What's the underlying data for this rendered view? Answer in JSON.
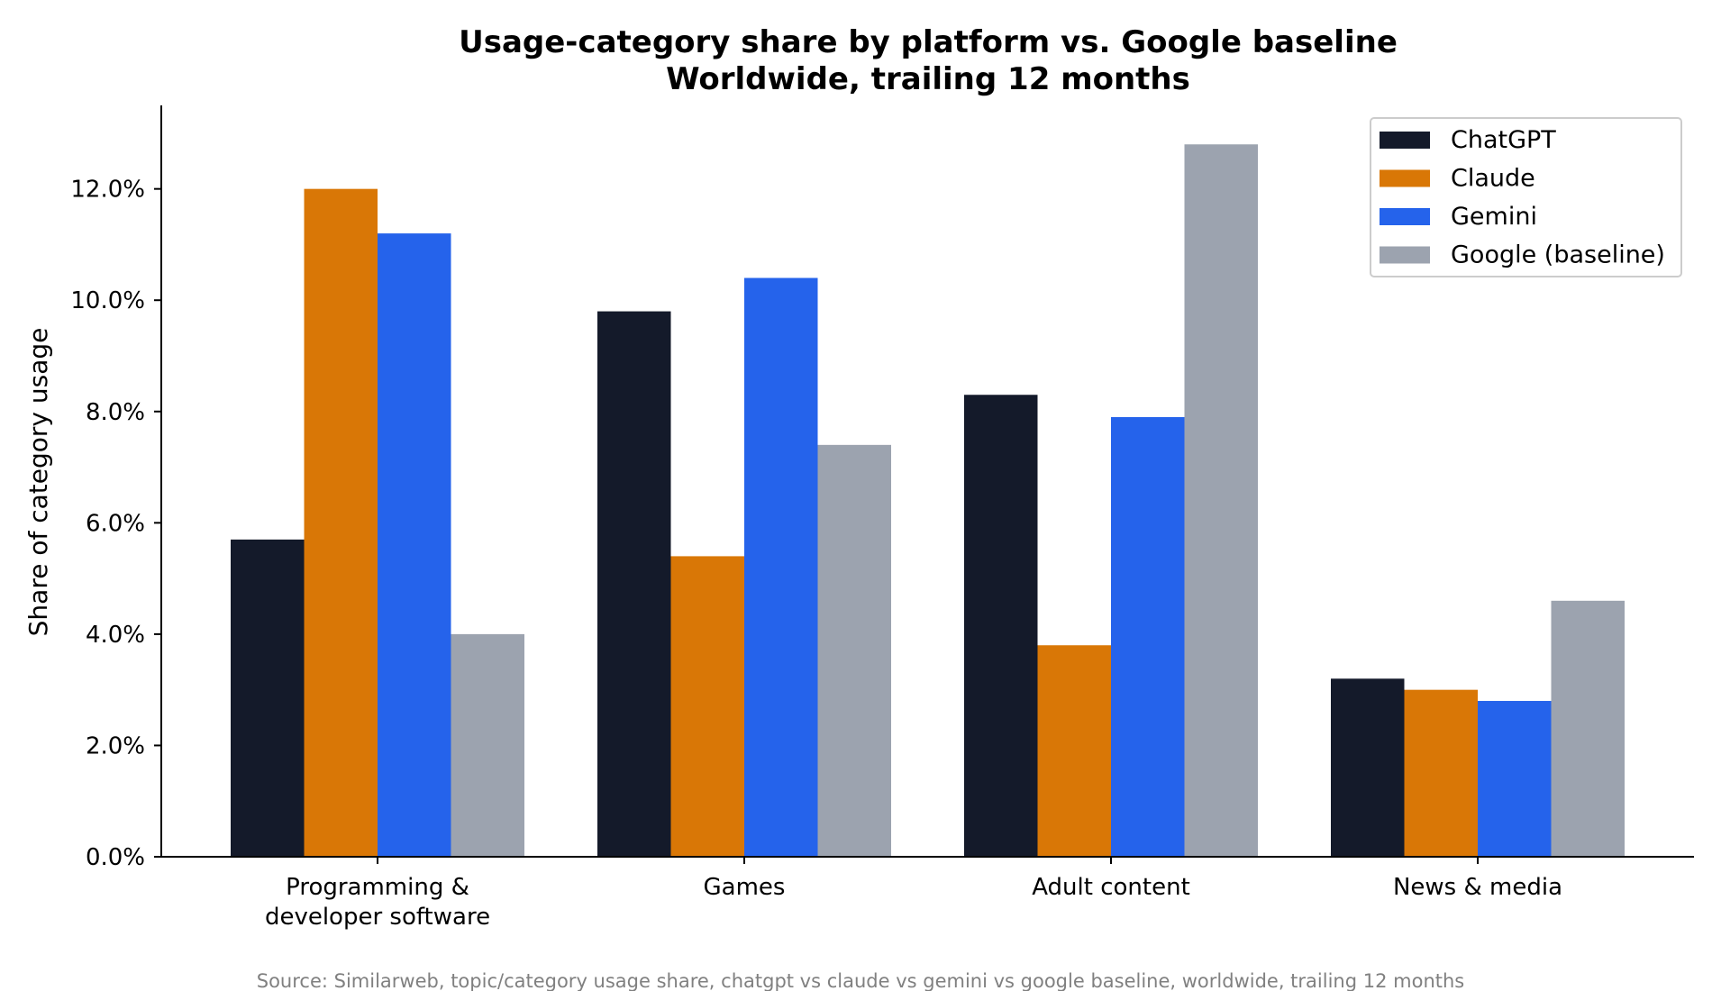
{
  "chart_data": {
    "type": "bar",
    "title": "Usage-category share by platform vs. Google baseline",
    "subtitle": "Worldwide, trailing 12 months",
    "ylabel": "Share of category usage",
    "xlabel": "",
    "categories": [
      [
        "Programming &",
        "developer software"
      ],
      [
        "Games"
      ],
      [
        "Adult content"
      ],
      [
        "News & media"
      ]
    ],
    "series": [
      {
        "name": "ChatGPT",
        "color": "#141a2a",
        "values": [
          5.7,
          9.8,
          8.3,
          3.2
        ]
      },
      {
        "name": "Claude",
        "color": "#d97706",
        "values": [
          12.0,
          5.4,
          3.8,
          3.0
        ]
      },
      {
        "name": "Gemini",
        "color": "#2563eb",
        "values": [
          11.2,
          10.4,
          7.9,
          2.8
        ]
      },
      {
        "name": "Google (baseline)",
        "color": "#9ca3af",
        "values": [
          4.0,
          7.4,
          12.8,
          4.6
        ]
      }
    ],
    "ylim": [
      0,
      13.5
    ],
    "yticks": [
      "0.0%",
      "2.0%",
      "4.0%",
      "6.0%",
      "8.0%",
      "10.0%",
      "12.0%"
    ],
    "ytick_values": [
      0,
      2,
      4,
      6,
      8,
      10,
      12
    ],
    "grid": false,
    "legend_position": "top-right",
    "source": "Source: Similarweb, topic/category usage share, chatgpt vs claude vs gemini vs google baseline, worldwide, trailing 12 months"
  }
}
